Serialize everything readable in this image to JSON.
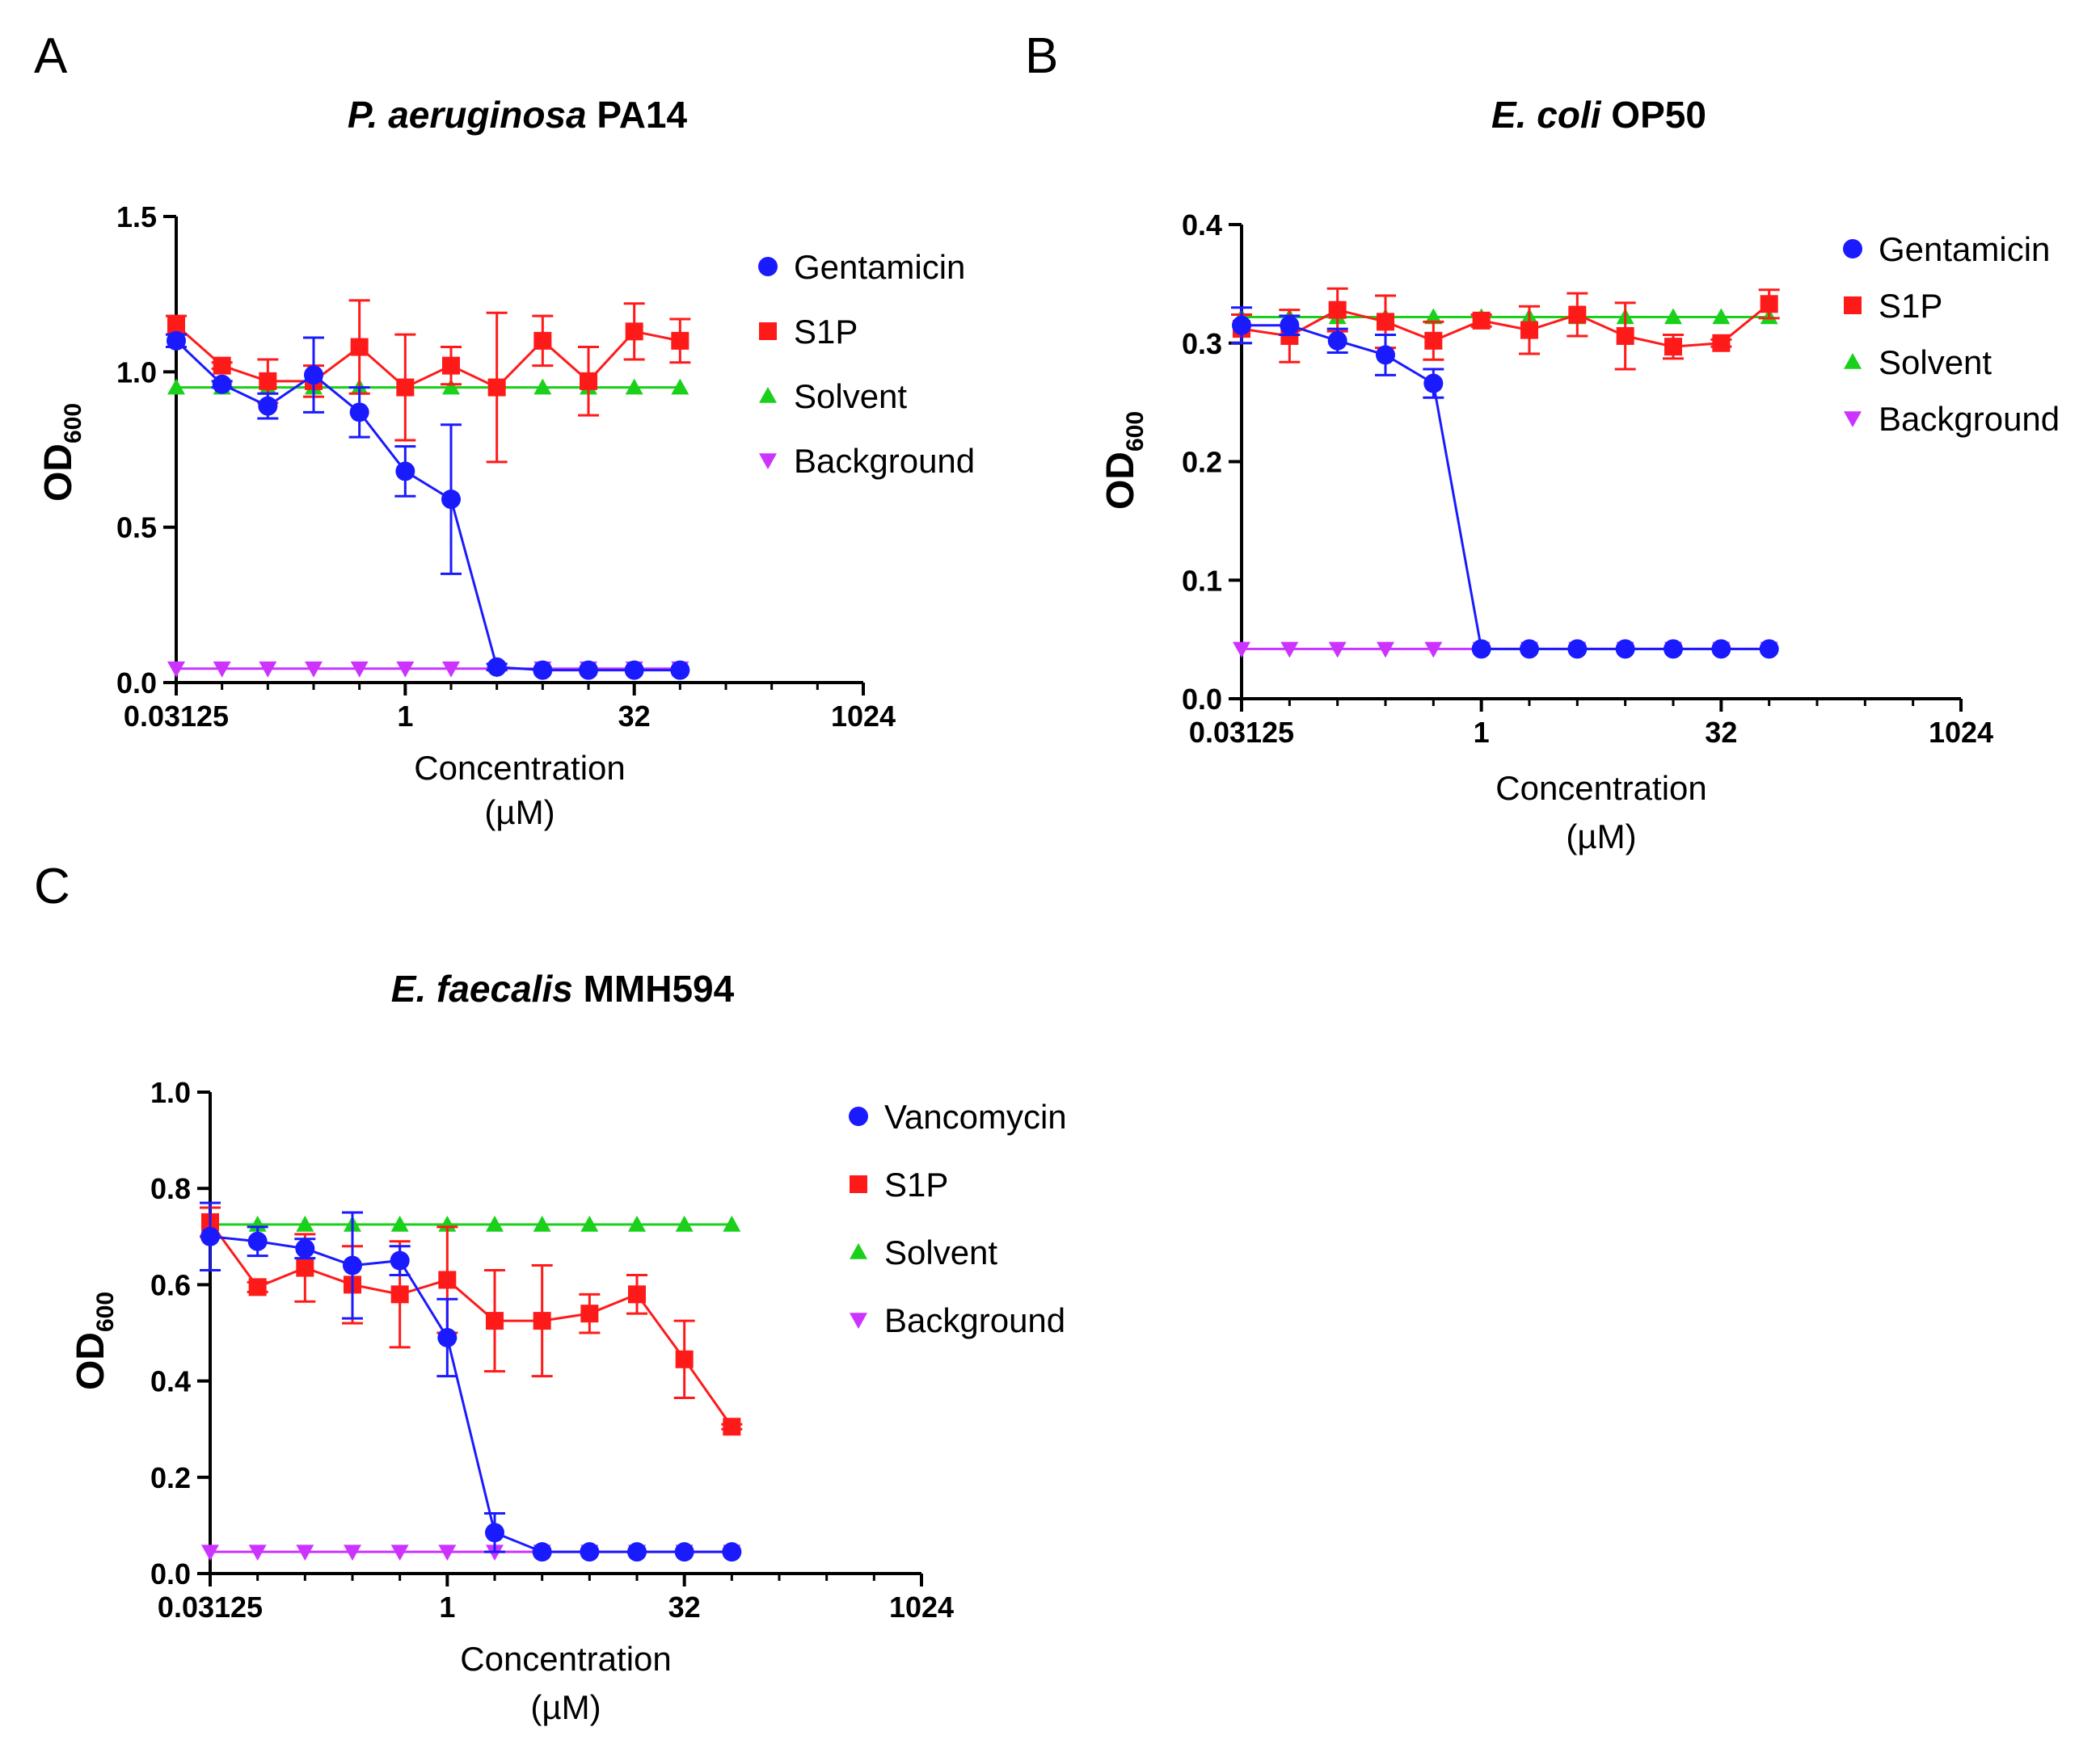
{
  "panels": [
    {
      "letter": "A"
    },
    {
      "letter": "B"
    },
    {
      "letter": "C"
    }
  ],
  "colors": {
    "blue": "#1a1aff",
    "red": "#ff1a1a",
    "green": "#1ad01a",
    "magenta": "#cc33ff"
  },
  "chart_data": [
    {
      "type": "line",
      "title_italic": "P. aeruginosa",
      "title_rest": " PA14",
      "xlabel": "Concentration",
      "xunit": "(µM)",
      "ylabel_main": "OD",
      "ylabel_sub": "600",
      "xscale": "log2",
      "xlim": [
        0.03125,
        1024
      ],
      "xticks": [
        0.03125,
        1,
        32,
        1024
      ],
      "xtick_labels": [
        "0.03125",
        "1",
        "32",
        "1024"
      ],
      "ylim": [
        0,
        1.5
      ],
      "yticks": [
        0,
        0.5,
        1.0,
        1.5
      ],
      "ytick_labels": [
        "0.0",
        "0.5",
        "1.0",
        "1.5"
      ],
      "x": [
        0.03125,
        0.0625,
        0.125,
        0.25,
        0.5,
        1,
        2,
        4,
        8,
        16,
        32,
        64
      ],
      "series": [
        {
          "name": "Gentamicin",
          "marker": "circle",
          "color": "#1a1aff",
          "values": [
            1.1,
            0.96,
            0.89,
            0.99,
            0.87,
            0.68,
            0.59,
            0.05,
            0.04,
            0.04,
            0.04,
            0.04
          ],
          "errors": [
            0.02,
            0.01,
            0.04,
            0.12,
            0.08,
            0.08,
            0.24,
            0.01,
            0.0,
            0.0,
            0.0,
            0.0
          ]
        },
        {
          "name": "S1P",
          "marker": "square",
          "color": "#ff1a1a",
          "values": [
            1.15,
            1.02,
            0.97,
            0.97,
            1.08,
            0.95,
            1.02,
            0.95,
            1.1,
            0.97,
            1.13,
            1.1
          ],
          "errors": [
            0.03,
            0.01,
            0.07,
            0.05,
            0.15,
            0.17,
            0.06,
            0.24,
            0.08,
            0.11,
            0.09,
            0.07
          ]
        },
        {
          "name": "Solvent",
          "marker": "triangle-up",
          "color": "#1ad01a",
          "values": [
            0.95,
            0.95,
            0.95,
            0.95,
            0.95,
            0.95,
            0.95,
            0.95,
            0.95,
            0.95,
            0.95,
            0.95
          ],
          "errors": [
            0,
            0,
            0,
            0,
            0,
            0,
            0,
            0,
            0,
            0,
            0,
            0
          ]
        },
        {
          "name": "Background",
          "marker": "triangle-down",
          "color": "#cc33ff",
          "values": [
            0.045,
            0.045,
            0.045,
            0.045,
            0.045,
            0.045,
            0.045,
            0.045,
            0.045,
            0.045,
            0.045,
            0.045
          ],
          "errors": [
            0,
            0,
            0,
            0,
            0,
            0,
            0,
            0,
            0,
            0,
            0,
            0
          ]
        }
      ]
    },
    {
      "type": "line",
      "title_italic": "E. coli",
      "title_rest": " OP50",
      "xlabel": "Concentration",
      "xunit": "(µM)",
      "ylabel_main": "OD",
      "ylabel_sub": "600",
      "xscale": "log2",
      "xlim": [
        0.03125,
        1024
      ],
      "xticks": [
        0.03125,
        1,
        32,
        1024
      ],
      "xtick_labels": [
        "0.03125",
        "1",
        "32",
        "1024"
      ],
      "ylim": [
        0,
        0.4
      ],
      "yticks": [
        0,
        0.1,
        0.2,
        0.3,
        0.4
      ],
      "ytick_labels": [
        "0.0",
        "0.1",
        "0.2",
        "0.3",
        "0.4"
      ],
      "x": [
        0.03125,
        0.0625,
        0.125,
        0.25,
        0.5,
        1,
        2,
        4,
        8,
        16,
        32,
        64
      ],
      "series": [
        {
          "name": "Gentamicin",
          "marker": "circle",
          "color": "#1a1aff",
          "values": [
            0.315,
            0.315,
            0.302,
            0.29,
            0.266,
            0.042,
            0.042,
            0.042,
            0.042,
            0.042,
            0.042,
            0.042
          ],
          "errors": [
            0.015,
            0.008,
            0.01,
            0.017,
            0.012,
            0,
            0,
            0,
            0,
            0,
            0,
            0
          ]
        },
        {
          "name": "S1P",
          "marker": "square",
          "color": "#ff1a1a",
          "values": [
            0.312,
            0.306,
            0.328,
            0.318,
            0.302,
            0.319,
            0.311,
            0.324,
            0.306,
            0.297,
            0.3,
            0.333
          ],
          "errors": [
            0.012,
            0.022,
            0.018,
            0.022,
            0.016,
            0.005,
            0.02,
            0.018,
            0.028,
            0.01,
            0.003,
            0.012
          ]
        },
        {
          "name": "Solvent",
          "marker": "triangle-up",
          "color": "#1ad01a",
          "values": [
            0.322,
            0.322,
            0.322,
            0.322,
            0.322,
            0.322,
            0.322,
            0.322,
            0.322,
            0.322,
            0.322,
            0.322
          ],
          "errors": [
            0,
            0,
            0,
            0,
            0,
            0,
            0,
            0,
            0,
            0,
            0,
            0
          ]
        },
        {
          "name": "Background",
          "marker": "triangle-down",
          "color": "#cc33ff",
          "values": [
            0.042,
            0.042,
            0.042,
            0.042,
            0.042,
            0.042,
            0.042,
            0.042,
            0.042,
            0.042,
            0.042,
            0.042
          ],
          "errors": [
            0,
            0,
            0,
            0,
            0,
            0,
            0,
            0,
            0,
            0,
            0,
            0
          ]
        }
      ]
    },
    {
      "type": "line",
      "title_italic": "E. faecalis",
      "title_rest": " MMH594",
      "xlabel": "Concentration",
      "xunit": "(µM)",
      "ylabel_main": "OD",
      "ylabel_sub": "600",
      "xscale": "log2",
      "xlim": [
        0.03125,
        1024
      ],
      "xticks": [
        0.03125,
        1,
        32,
        1024
      ],
      "xtick_labels": [
        "0.03125",
        "1",
        "32",
        "1024"
      ],
      "ylim": [
        0,
        1.0
      ],
      "yticks": [
        0,
        0.2,
        0.4,
        0.6,
        0.8,
        1.0
      ],
      "ytick_labels": [
        "0.0",
        "0.2",
        "0.4",
        "0.6",
        "0.8",
        "1.0"
      ],
      "x": [
        0.03125,
        0.0625,
        0.125,
        0.25,
        0.5,
        1,
        2,
        4,
        8,
        16,
        32,
        64
      ],
      "series": [
        {
          "name": "Vancomycin",
          "marker": "circle",
          "color": "#1a1aff",
          "values": [
            0.7,
            0.69,
            0.675,
            0.64,
            0.65,
            0.49,
            0.085,
            0.045,
            0.045,
            0.045,
            0.045,
            0.045
          ],
          "errors": [
            0.07,
            0.03,
            0.02,
            0.11,
            0.03,
            0.08,
            0.04,
            0,
            0,
            0,
            0,
            0
          ]
        },
        {
          "name": "S1P",
          "marker": "square",
          "color": "#ff1a1a",
          "values": [
            0.73,
            0.595,
            0.635,
            0.6,
            0.58,
            0.61,
            0.525,
            0.525,
            0.54,
            0.58,
            0.445,
            0.305
          ],
          "errors": [
            0.03,
            0.01,
            0.07,
            0.08,
            0.11,
            0.11,
            0.105,
            0.115,
            0.04,
            0.04,
            0.08,
            0.005
          ]
        },
        {
          "name": "Solvent",
          "marker": "triangle-up",
          "color": "#1ad01a",
          "values": [
            0.725,
            0.725,
            0.725,
            0.725,
            0.725,
            0.725,
            0.725,
            0.725,
            0.725,
            0.725,
            0.725,
            0.725
          ],
          "errors": [
            0,
            0,
            0,
            0,
            0,
            0,
            0,
            0,
            0,
            0,
            0,
            0
          ]
        },
        {
          "name": "Background",
          "marker": "triangle-down",
          "color": "#cc33ff",
          "values": [
            0.045,
            0.045,
            0.045,
            0.045,
            0.045,
            0.045,
            0.045,
            0.045,
            0.045,
            0.045,
            0.045,
            0.045
          ],
          "errors": [
            0,
            0,
            0,
            0,
            0,
            0,
            0,
            0,
            0,
            0,
            0,
            0
          ]
        }
      ]
    }
  ]
}
